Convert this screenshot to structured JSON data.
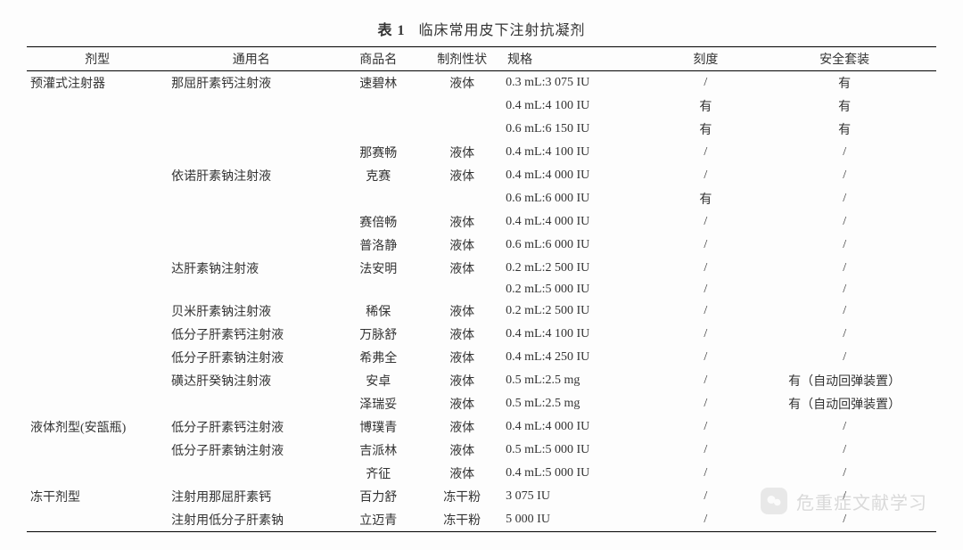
{
  "title": {
    "number": "表 1",
    "text": "临床常用皮下注射抗凝剂"
  },
  "columns": [
    "剂型",
    "通用名",
    "商品名",
    "制剂性状",
    "规格",
    "刻度",
    "安全套装"
  ],
  "rows": [
    {
      "type": "预灌式注射器",
      "generic": "那屈肝素钙注射液",
      "brand": "速碧林",
      "form": "液体",
      "spec": "0.3 mL:3 075 IU",
      "scale": "/",
      "safety": "有"
    },
    {
      "type": "",
      "generic": "",
      "brand": "",
      "form": "",
      "spec": "0.4 mL:4 100 IU",
      "scale": "有",
      "safety": "有"
    },
    {
      "type": "",
      "generic": "",
      "brand": "",
      "form": "",
      "spec": "0.6 mL:6 150 IU",
      "scale": "有",
      "safety": "有"
    },
    {
      "type": "",
      "generic": "",
      "brand": "那赛畅",
      "form": "液体",
      "spec": "0.4 mL:4 100 IU",
      "scale": "/",
      "safety": "/"
    },
    {
      "type": "",
      "generic": "依诺肝素钠注射液",
      "brand": "克赛",
      "form": "液体",
      "spec": "0.4 mL:4 000 IU",
      "scale": "/",
      "safety": "/"
    },
    {
      "type": "",
      "generic": "",
      "brand": "",
      "form": "",
      "spec": "0.6 mL:6 000 IU",
      "scale": "有",
      "safety": "/"
    },
    {
      "type": "",
      "generic": "",
      "brand": "赛倍畅",
      "form": "液体",
      "spec": "0.4 mL:4 000 IU",
      "scale": "/",
      "safety": "/"
    },
    {
      "type": "",
      "generic": "",
      "brand": "普洛静",
      "form": "液体",
      "spec": "0.6 mL:6 000 IU",
      "scale": "/",
      "safety": "/"
    },
    {
      "type": "",
      "generic": "达肝素钠注射液",
      "brand": "法安明",
      "form": "液体",
      "spec": "0.2 mL:2 500 IU",
      "scale": "/",
      "safety": "/"
    },
    {
      "type": "",
      "generic": "",
      "brand": "",
      "form": "",
      "spec": "0.2 mL:5 000 IU",
      "scale": "/",
      "safety": "/"
    },
    {
      "type": "",
      "generic": "贝米肝素钠注射液",
      "brand": "稀保",
      "form": "液体",
      "spec": "0.2 mL:2 500 IU",
      "scale": "/",
      "safety": "/"
    },
    {
      "type": "",
      "generic": "低分子肝素钙注射液",
      "brand": "万脉舒",
      "form": "液体",
      "spec": "0.4 mL:4 100 IU",
      "scale": "/",
      "safety": "/"
    },
    {
      "type": "",
      "generic": "低分子肝素钠注射液",
      "brand": "希弗全",
      "form": "液体",
      "spec": "0.4 mL:4 250 IU",
      "scale": "/",
      "safety": "/"
    },
    {
      "type": "",
      "generic": "磺达肝癸钠注射液",
      "brand": "安卓",
      "form": "液体",
      "spec": "0.5 mL:2.5 mg",
      "scale": "/",
      "safety": "有（自动回弹装置）"
    },
    {
      "type": "",
      "generic": "",
      "brand": "泽瑞妥",
      "form": "液体",
      "spec": "0.5 mL:2.5 mg",
      "scale": "/",
      "safety": "有（自动回弹装置）"
    },
    {
      "type": "液体剂型(安瓿瓶)",
      "generic": "低分子肝素钙注射液",
      "brand": "博璞青",
      "form": "液体",
      "spec": "0.4 mL:4 000 IU",
      "scale": "/",
      "safety": "/"
    },
    {
      "type": "",
      "generic": "低分子肝素钠注射液",
      "brand": "吉派林",
      "form": "液体",
      "spec": "0.5 mL:5 000 IU",
      "scale": "/",
      "safety": "/"
    },
    {
      "type": "",
      "generic": "",
      "brand": "齐征",
      "form": "液体",
      "spec": "0.4 mL:5 000 IU",
      "scale": "/",
      "safety": "/"
    },
    {
      "type": "冻干剂型",
      "generic": "注射用那屈肝素钙",
      "brand": "百力舒",
      "form": "冻干粉",
      "spec": "3 075 IU",
      "scale": "/",
      "safety": "/"
    },
    {
      "type": "",
      "generic": "注射用低分子肝素钠",
      "brand": "立迈青",
      "form": "冻干粉",
      "spec": "5 000 IU",
      "scale": "/",
      "safety": "/"
    }
  ],
  "watermark": {
    "text": "危重症文献学习"
  },
  "style": {
    "background": "#fdfdfd",
    "text_color": "#333333",
    "border_color": "#000000",
    "font_size_body": 14,
    "font_size_title": 16,
    "watermark_color": "#888888",
    "watermark_opacity": 0.3
  }
}
